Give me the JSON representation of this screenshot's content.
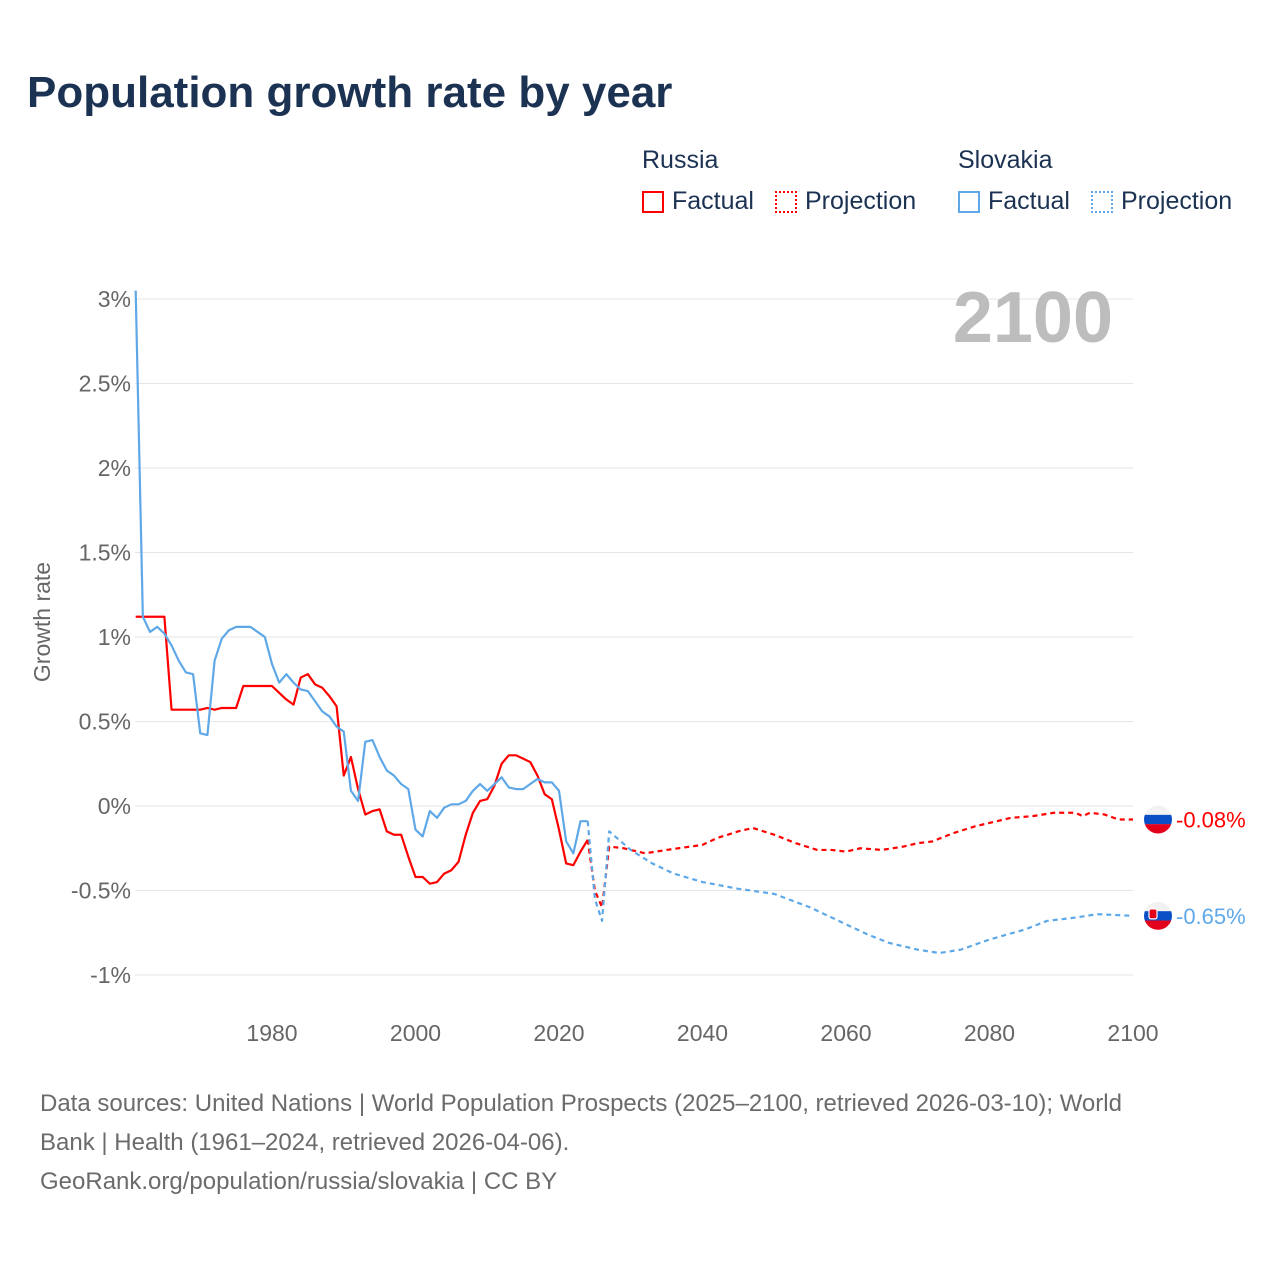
{
  "title": "Population growth rate by year",
  "legend": {
    "groups": [
      {
        "name": "Russia",
        "color": "#ff0000",
        "items": [
          "Factual",
          "Projection"
        ]
      },
      {
        "name": "Slovakia",
        "color": "#5fa8e8",
        "items": [
          "Factual",
          "Projection"
        ]
      }
    ]
  },
  "footer": {
    "line1": "Data sources: United Nations | World Population Prospects (2025–2100, retrieved 2026-03-10); World",
    "line2": "Bank | Health (1961–2024, retrieved 2026-04-06).",
    "line3": "GeoRank.org/population/russia/slovakia | CC BY"
  },
  "chart_data": {
    "type": "line",
    "title": "Population growth rate by year",
    "ylabel": "Growth rate",
    "xlabel": "",
    "year_label": "2100",
    "xlim": [
      1961,
      2100
    ],
    "ylim": [
      -1.2,
      3.05
    ],
    "xticks": [
      1980,
      2000,
      2020,
      2040,
      2060,
      2080,
      2100
    ],
    "yticks": [
      {
        "v": 3,
        "l": "3%"
      },
      {
        "v": 2.5,
        "l": "2.5%"
      },
      {
        "v": 2,
        "l": "2%"
      },
      {
        "v": 1.5,
        "l": "1.5%"
      },
      {
        "v": 1,
        "l": "1%"
      },
      {
        "v": 0.5,
        "l": "0.5%"
      },
      {
        "v": 0,
        "l": "0%"
      },
      {
        "v": -0.5,
        "l": "-0.5%"
      },
      {
        "v": -1,
        "l": "-1%"
      }
    ],
    "grid": true,
    "series": [
      {
        "name": "Russia",
        "kind": "Factual",
        "color": "#ff0000",
        "start": 1961,
        "values": [
          1.12,
          1.12,
          1.12,
          1.12,
          1.12,
          0.57,
          0.57,
          0.57,
          0.57,
          0.57,
          0.58,
          0.57,
          0.58,
          0.58,
          0.58,
          0.71,
          0.71,
          0.71,
          0.71,
          0.71,
          0.67,
          0.63,
          0.6,
          0.76,
          0.78,
          0.72,
          0.7,
          0.65,
          0.59,
          0.18,
          0.29,
          0.1,
          -0.05,
          -0.03,
          -0.02,
          -0.15,
          -0.17,
          -0.17,
          -0.3,
          -0.42,
          -0.42,
          -0.46,
          -0.45,
          -0.4,
          -0.38,
          -0.33,
          -0.17,
          -0.04,
          0.03,
          0.04,
          0.12,
          0.25,
          0.3,
          0.3,
          0.28,
          0.26,
          0.18,
          0.07,
          0.04,
          -0.14,
          -0.34,
          -0.35,
          -0.27,
          -0.2
        ]
      },
      {
        "name": "Russia",
        "kind": "Projection",
        "color": "#ff0000",
        "points": [
          [
            2024,
            -0.2
          ],
          [
            2025,
            -0.5
          ],
          [
            2026,
            -0.6
          ],
          [
            2027,
            -0.24
          ],
          [
            2029,
            -0.25
          ],
          [
            2032,
            -0.28
          ],
          [
            2035,
            -0.26
          ],
          [
            2040,
            -0.23
          ],
          [
            2042,
            -0.19
          ],
          [
            2045,
            -0.15
          ],
          [
            2047,
            -0.13
          ],
          [
            2050,
            -0.17
          ],
          [
            2053,
            -0.22
          ],
          [
            2056,
            -0.26
          ],
          [
            2058,
            -0.26
          ],
          [
            2060,
            -0.27
          ],
          [
            2062,
            -0.25
          ],
          [
            2065,
            -0.26
          ],
          [
            2068,
            -0.24
          ],
          [
            2070,
            -0.22
          ],
          [
            2072,
            -0.21
          ],
          [
            2075,
            -0.16
          ],
          [
            2078,
            -0.12
          ],
          [
            2080,
            -0.1
          ],
          [
            2083,
            -0.07
          ],
          [
            2086,
            -0.06
          ],
          [
            2089,
            -0.04
          ],
          [
            2092,
            -0.04
          ],
          [
            2093,
            -0.06
          ],
          [
            2094,
            -0.04
          ],
          [
            2096,
            -0.05
          ],
          [
            2098,
            -0.08
          ],
          [
            2100,
            -0.08
          ]
        ],
        "end_label": "-0.08%"
      },
      {
        "name": "Slovakia",
        "kind": "Factual",
        "color": "#5fa8e8",
        "start": 1961,
        "values": [
          3.05,
          1.12,
          1.03,
          1.06,
          1.02,
          0.95,
          0.86,
          0.79,
          0.78,
          0.43,
          0.42,
          0.86,
          0.99,
          1.04,
          1.06,
          1.06,
          1.06,
          1.03,
          1.0,
          0.84,
          0.73,
          0.78,
          0.73,
          0.69,
          0.68,
          0.62,
          0.56,
          0.53,
          0.47,
          0.44,
          0.09,
          0.03,
          0.38,
          0.39,
          0.29,
          0.21,
          0.18,
          0.13,
          0.1,
          -0.14,
          -0.18,
          -0.03,
          -0.07,
          -0.01,
          0.01,
          0.01,
          0.03,
          0.09,
          0.13,
          0.09,
          0.13,
          0.17,
          0.11,
          0.1,
          0.1,
          0.13,
          0.16,
          0.14,
          0.14,
          0.09,
          -0.21,
          -0.28,
          -0.09,
          -0.09
        ]
      },
      {
        "name": "Slovakia",
        "kind": "Projection",
        "color": "#5fa8e8",
        "points": [
          [
            2024,
            -0.09
          ],
          [
            2025,
            -0.55
          ],
          [
            2026,
            -0.68
          ],
          [
            2027,
            -0.15
          ],
          [
            2030,
            -0.26
          ],
          [
            2033,
            -0.34
          ],
          [
            2036,
            -0.4
          ],
          [
            2040,
            -0.45
          ],
          [
            2045,
            -0.49
          ],
          [
            2050,
            -0.52
          ],
          [
            2055,
            -0.6
          ],
          [
            2060,
            -0.7
          ],
          [
            2063,
            -0.76
          ],
          [
            2066,
            -0.81
          ],
          [
            2070,
            -0.85
          ],
          [
            2073,
            -0.87
          ],
          [
            2076,
            -0.85
          ],
          [
            2080,
            -0.79
          ],
          [
            2085,
            -0.73
          ],
          [
            2088,
            -0.68
          ],
          [
            2092,
            -0.66
          ],
          [
            2095,
            -0.64
          ],
          [
            2100,
            -0.65
          ]
        ],
        "end_label": "-0.65%"
      }
    ]
  }
}
